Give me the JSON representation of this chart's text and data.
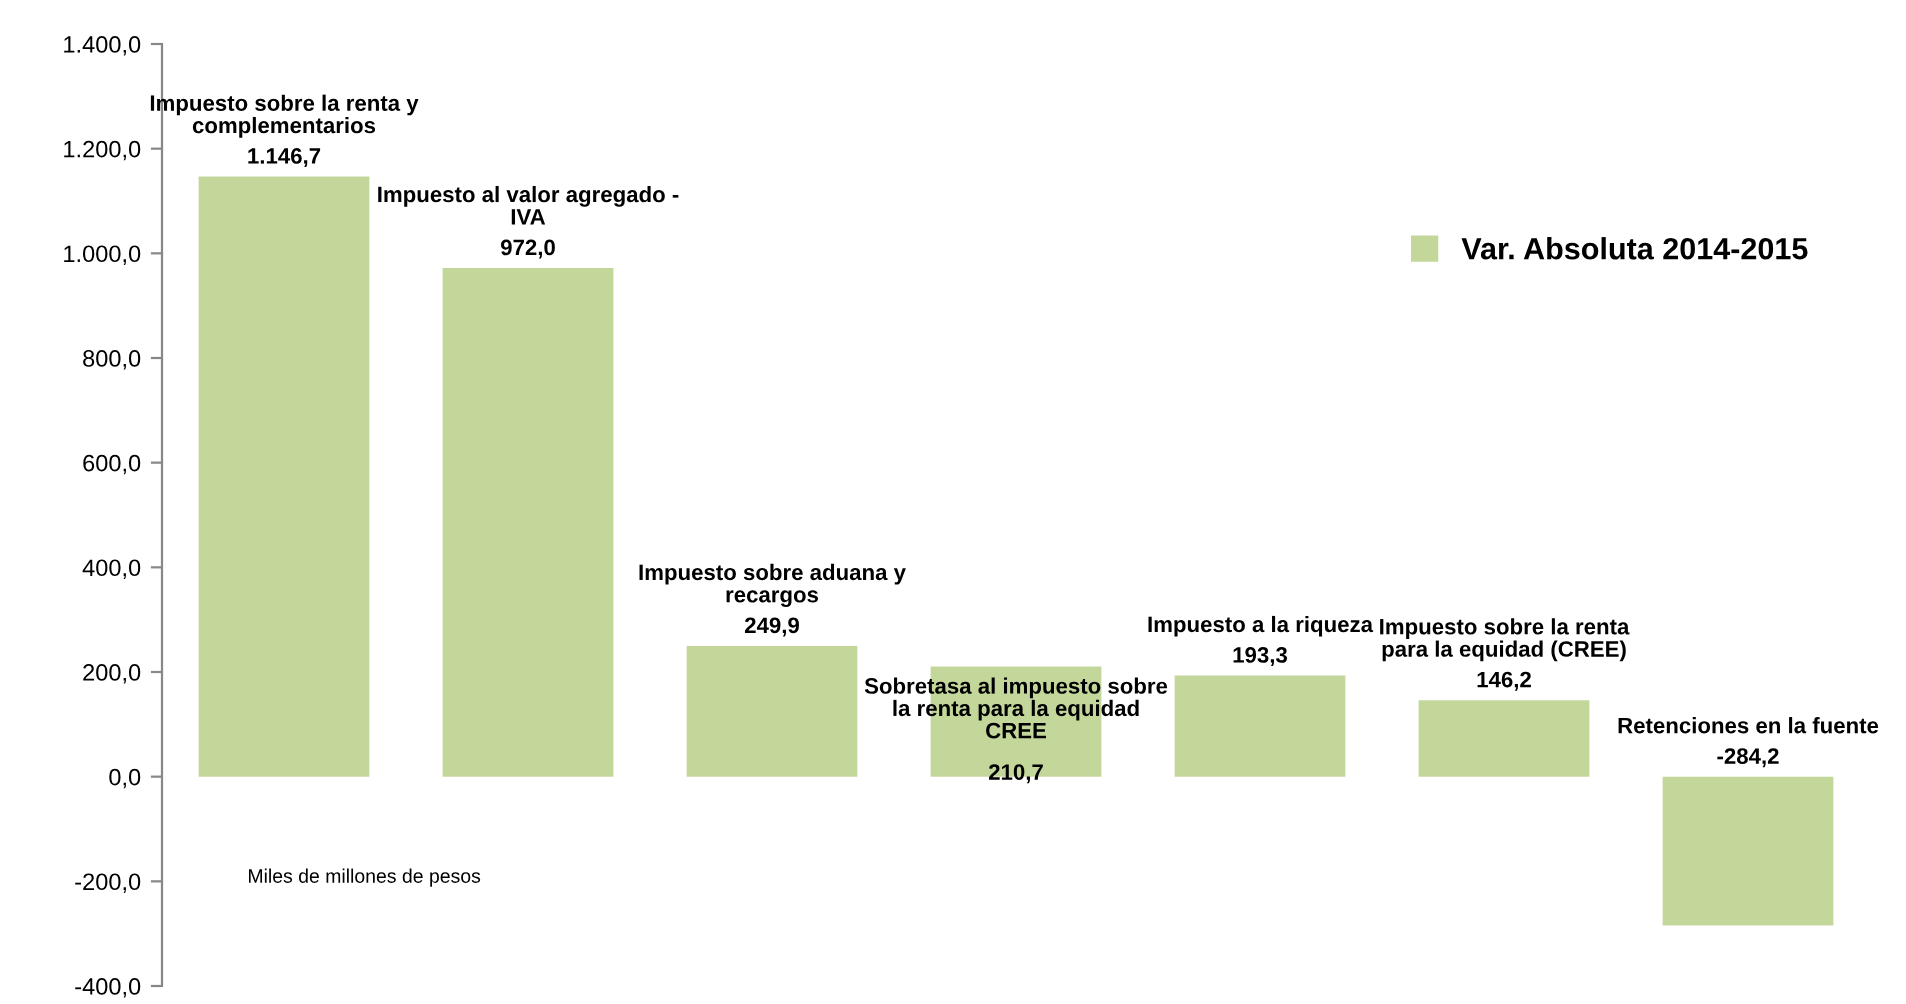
{
  "chart_data": {
    "type": "bar",
    "categories": [
      "Impuesto sobre la renta y\ncomplementarios",
      "Impuesto al valor agregado -\nIVA",
      "Impuesto sobre aduana y\nrecargos",
      "Sobretasa al impuesto sobre\nla renta para la equidad\nCREE",
      "Impuesto a la riqueza",
      "Impuesto sobre la renta\npara la equidad (CREE)",
      "Retenciones en la fuente"
    ],
    "series": [
      {
        "name": "Var. Absoluta 2014-2015",
        "color": "#c4d79b",
        "values": [
          1146.7,
          972.0,
          249.9,
          210.7,
          193.3,
          146.2,
          -284.2
        ],
        "value_labels": [
          "1.146,7",
          "972,0",
          "249,9",
          "210,7",
          "193,3",
          "146,2",
          "-284,2"
        ]
      }
    ],
    "ylim": [
      -400,
      1400
    ],
    "yticks": [
      {
        "value": -400,
        "label": "-400,0"
      },
      {
        "value": -200,
        "label": "-200,0"
      },
      {
        "value": 0,
        "label": "0,0"
      },
      {
        "value": 200,
        "label": "200,0"
      },
      {
        "value": 400,
        "label": "400,0"
      },
      {
        "value": 600,
        "label": "600,0"
      },
      {
        "value": 800,
        "label": "800,0"
      },
      {
        "value": 1000,
        "label": "1.000,0"
      },
      {
        "value": 1200,
        "label": "1.200,0"
      },
      {
        "value": 1400,
        "label": "1.400,0"
      }
    ],
    "legend": "right",
    "grid": false,
    "annotations": [
      "Miles de millones de pesos"
    ]
  }
}
